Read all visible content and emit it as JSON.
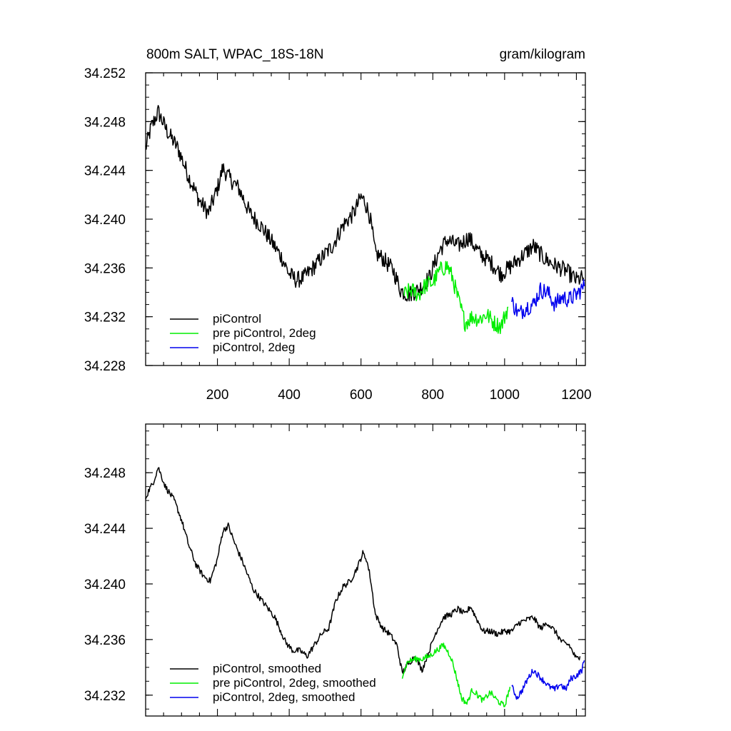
{
  "chart_data": [
    {
      "type": "line",
      "title_left": "800m SALT, WPAC_18S-18N",
      "title_right": "gram/kilogram",
      "xlabel": "",
      "ylabel": "",
      "xlim": [
        0,
        1225
      ],
      "ylim": [
        34.228,
        34.252
      ],
      "x_ticks": [
        "200",
        "400",
        "600",
        "800",
        "1000",
        "1200"
      ],
      "y_ticks": [
        "34.228",
        "34.232",
        "34.236",
        "34.240",
        "34.244",
        "34.248",
        "34.252"
      ],
      "legend_position": "bottom-left",
      "grid": false,
      "series": [
        {
          "name": "piControl",
          "color": "#000000",
          "x": [
            0,
            15,
            35,
            60,
            90,
            120,
            150,
            175,
            200,
            215,
            235,
            260,
            290,
            320,
            350,
            380,
            400,
            420,
            440,
            460,
            490,
            520,
            550,
            580,
            600,
            610,
            625,
            640,
            660,
            690,
            710,
            730,
            760,
            790,
            820,
            840,
            870,
            900,
            930,
            960,
            990,
            1020,
            1050,
            1080,
            1110,
            1140,
            1170,
            1200,
            1220
          ],
          "y": [
            34.2458,
            34.2475,
            34.2488,
            34.2472,
            34.2458,
            34.2435,
            34.2415,
            34.2405,
            34.2425,
            34.2442,
            34.2433,
            34.2425,
            34.2405,
            34.2395,
            34.2382,
            34.2368,
            34.2355,
            34.235,
            34.2352,
            34.2358,
            34.2368,
            34.2378,
            34.2395,
            34.2405,
            34.2418,
            34.2415,
            34.2402,
            34.2372,
            34.2368,
            34.2358,
            34.2342,
            34.2338,
            34.2342,
            34.2352,
            34.2375,
            34.2383,
            34.2378,
            34.2385,
            34.2372,
            34.2365,
            34.2355,
            34.2362,
            34.237,
            34.2378,
            34.2368,
            34.2362,
            34.2358,
            34.235,
            34.2352
          ]
        },
        {
          "name": "pre piControl, 2deg",
          "color": "#00ee00",
          "x": [
            720,
            740,
            760,
            780,
            800,
            820,
            840,
            855,
            870,
            890,
            910,
            930,
            950,
            970,
            990,
            1010
          ],
          "y": [
            34.2338,
            34.2342,
            34.2338,
            34.2346,
            34.2348,
            34.2358,
            34.2362,
            34.2352,
            34.2335,
            34.2315,
            34.232,
            34.2318,
            34.2322,
            34.2315,
            34.2312,
            34.2328
          ]
        },
        {
          "name": "piControl, 2deg",
          "color": "#0000ee",
          "x": [
            1020,
            1040,
            1060,
            1080,
            1100,
            1120,
            1140,
            1160,
            1180,
            1200,
            1222
          ],
          "y": [
            34.2332,
            34.2322,
            34.2328,
            34.233,
            34.2342,
            34.234,
            34.233,
            34.2336,
            34.2334,
            34.2338,
            34.2345
          ]
        }
      ]
    },
    {
      "type": "line",
      "xlabel": "",
      "ylabel": "",
      "xlim": [
        0,
        1225
      ],
      "ylim": [
        34.2305,
        34.2515
      ],
      "y_ticks": [
        "34.232",
        "34.236",
        "34.240",
        "34.244",
        "34.248"
      ],
      "legend_position": "bottom-left",
      "grid": false,
      "series": [
        {
          "name": "piControl, smoothed",
          "color": "#000000",
          "x": [
            0,
            10,
            20,
            35,
            55,
            80,
            100,
            120,
            140,
            160,
            180,
            200,
            215,
            230,
            250,
            270,
            300,
            330,
            360,
            390,
            410,
            430,
            450,
            470,
            490,
            510,
            530,
            550,
            570,
            590,
            605,
            615,
            625,
            640,
            660,
            680,
            700,
            715,
            730,
            750,
            770,
            790,
            810,
            830,
            850,
            870,
            890,
            905,
            920,
            940,
            960,
            980,
            1000,
            1020,
            1040,
            1060,
            1080,
            1100,
            1120,
            1140,
            1160,
            1180,
            1200,
            1210
          ],
          "y": [
            34.2462,
            34.2468,
            34.2472,
            34.2484,
            34.247,
            34.246,
            34.2446,
            34.2428,
            34.2414,
            34.2406,
            34.2402,
            34.2418,
            34.2438,
            34.2442,
            34.2428,
            34.2416,
            34.2396,
            34.2386,
            34.2376,
            34.2358,
            34.2352,
            34.2352,
            34.2348,
            34.2356,
            34.2364,
            34.2368,
            34.2388,
            34.2398,
            34.2402,
            34.2412,
            34.2422,
            34.2418,
            34.2406,
            34.2378,
            34.2368,
            34.2364,
            34.2356,
            34.2336,
            34.2342,
            34.2348,
            34.2338,
            34.2352,
            34.2366,
            34.2376,
            34.2378,
            34.2382,
            34.2378,
            34.2384,
            34.2376,
            34.2366,
            34.2366,
            34.2364,
            34.2366,
            34.2366,
            34.2372,
            34.2374,
            34.2376,
            34.2368,
            34.2372,
            34.2366,
            34.2358,
            34.2356,
            34.2346,
            34.2348
          ]
        },
        {
          "name": "pre piControl, 2deg, smoothed",
          "color": "#00ee00",
          "x": [
            715,
            730,
            750,
            770,
            790,
            810,
            830,
            850,
            865,
            880,
            895,
            910,
            925,
            940,
            960,
            980,
            1000,
            1015
          ],
          "y": [
            34.2334,
            34.2344,
            34.2346,
            34.2346,
            34.2348,
            34.2352,
            34.2356,
            34.2348,
            34.2334,
            34.2318,
            34.2314,
            34.2324,
            34.232,
            34.2316,
            34.2322,
            34.2316,
            34.2312,
            34.2326
          ]
        },
        {
          "name": "piControl, 2deg, smoothed",
          "color": "#0000ee",
          "x": [
            1020,
            1035,
            1050,
            1065,
            1080,
            1095,
            1110,
            1125,
            1140,
            1155,
            1170,
            1185,
            1200,
            1215,
            1222
          ],
          "y": [
            34.2326,
            34.2318,
            34.2324,
            34.2332,
            34.2338,
            34.2334,
            34.233,
            34.2326,
            34.2324,
            34.2328,
            34.2324,
            34.2332,
            34.2334,
            34.2338,
            34.2345
          ]
        }
      ]
    }
  ]
}
